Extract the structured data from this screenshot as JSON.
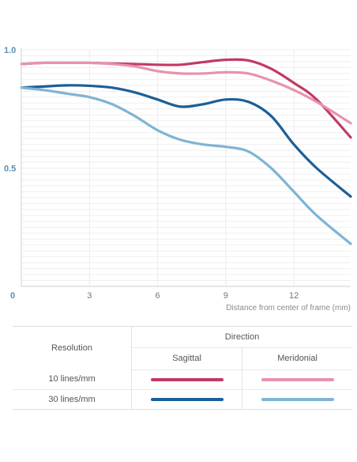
{
  "chart_data": {
    "type": "line",
    "title": "",
    "xlabel": "Distance from center of frame (mm)",
    "ylabel": "",
    "xlim": [
      0,
      14.5
    ],
    "ylim": [
      0,
      1.0
    ],
    "x_ticks": [
      0,
      3,
      6,
      9,
      12
    ],
    "x_tick_labels": [
      "0",
      "3",
      "6",
      "9",
      "12"
    ],
    "y_ticks": [
      0.5,
      1.0
    ],
    "y_tick_labels": [
      "0.5",
      "1.0"
    ],
    "grid": "horizontal",
    "series": [
      {
        "name": "10 lines/mm Sagittal",
        "color": "#c13a62",
        "x": [
          0,
          1,
          2,
          3,
          4,
          5,
          6,
          7,
          8,
          9,
          10,
          11,
          12,
          13,
          14.5
        ],
        "y": [
          0.94,
          0.945,
          0.945,
          0.945,
          0.942,
          0.94,
          0.937,
          0.937,
          0.948,
          0.958,
          0.955,
          0.92,
          0.86,
          0.79,
          0.63
        ]
      },
      {
        "name": "10 lines/mm Meridonial",
        "color": "#e793ac",
        "x": [
          0,
          1,
          2,
          3,
          4,
          5,
          6,
          7,
          8,
          9,
          10,
          11,
          12,
          13,
          14.5
        ],
        "y": [
          0.94,
          0.945,
          0.945,
          0.945,
          0.94,
          0.93,
          0.91,
          0.9,
          0.9,
          0.905,
          0.9,
          0.87,
          0.83,
          0.78,
          0.69
        ]
      },
      {
        "name": "30 lines/mm Sagittal",
        "color": "#1b5f98",
        "x": [
          0,
          1,
          2,
          3,
          4,
          5,
          6,
          7,
          8,
          9,
          10,
          11,
          12,
          13,
          14.5
        ],
        "y": [
          0.84,
          0.845,
          0.85,
          0.848,
          0.84,
          0.82,
          0.79,
          0.76,
          0.77,
          0.79,
          0.78,
          0.72,
          0.6,
          0.5,
          0.38
        ]
      },
      {
        "name": "30 lines/mm Meridonial",
        "color": "#7fb4d4",
        "x": [
          0,
          1,
          2,
          3,
          4,
          5,
          6,
          7,
          8,
          9,
          10,
          11,
          12,
          13,
          14.5
        ],
        "y": [
          0.84,
          0.83,
          0.815,
          0.8,
          0.77,
          0.72,
          0.66,
          0.62,
          0.6,
          0.59,
          0.57,
          0.5,
          0.4,
          0.3,
          0.18
        ]
      }
    ]
  },
  "legend": {
    "resolution_header": "Resolution",
    "direction_header": "Direction",
    "col_sagittal": "Sagittal",
    "col_meridonial": "Meridonial",
    "rows": [
      {
        "label": "10 lines/mm",
        "sagittal_color": "#c13a62",
        "meridonial_color": "#e793ac"
      },
      {
        "label": "30 lines/mm",
        "sagittal_color": "#1b5f98",
        "meridonial_color": "#7fb4d4"
      }
    ]
  }
}
